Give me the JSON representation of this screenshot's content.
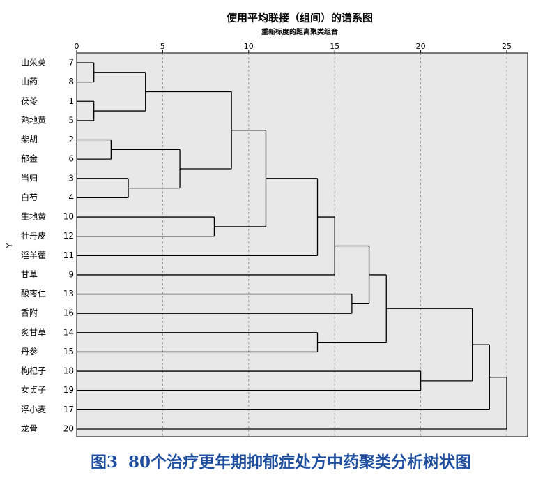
{
  "chart_data": {
    "type": "dendrogram",
    "title": "使用平均联接（组间）的谱系图",
    "subtitle": "重新标度的距离聚类组合",
    "y_label": "Y",
    "xlim": [
      0,
      25
    ],
    "xticks": [
      0,
      5,
      10,
      15,
      20,
      25
    ],
    "grid": true,
    "color": "#000000",
    "background": "#e8e8e8",
    "tree": {
      "height": 25,
      "children": [
        {
          "height": 24,
          "children": [
            {
              "height": 23,
              "children": [
                {
                  "height": 18,
                  "children": [
                    {
                      "height": 17,
                      "children": [
                        {
                          "height": 15,
                          "children": [
                            {
                              "height": 14,
                              "children": [
                                {
                                  "height": 11,
                                  "children": [
                                    {
                                      "height": 9,
                                      "children": [
                                        {
                                          "height": 4,
                                          "children": [
                                            {
                                              "height": 1,
                                              "children": [
                                                {
                                                  "label": "山茱萸",
                                                  "id": 7
                                                },
                                                {
                                                  "label": "山药",
                                                  "id": 8
                                                }
                                              ]
                                            },
                                            {
                                              "height": 1,
                                              "children": [
                                                {
                                                  "label": "茯苓",
                                                  "id": 1
                                                },
                                                {
                                                  "label": "熟地黄",
                                                  "id": 5
                                                }
                                              ]
                                            }
                                          ]
                                        },
                                        {
                                          "height": 6,
                                          "children": [
                                            {
                                              "height": 2,
                                              "children": [
                                                {
                                                  "label": "柴胡",
                                                  "id": 2
                                                },
                                                {
                                                  "label": "郁金",
                                                  "id": 6
                                                }
                                              ]
                                            },
                                            {
                                              "height": 3,
                                              "children": [
                                                {
                                                  "label": "当归",
                                                  "id": 3
                                                },
                                                {
                                                  "label": "白芍",
                                                  "id": 4
                                                }
                                              ]
                                            }
                                          ]
                                        }
                                      ]
                                    },
                                    {
                                      "height": 8,
                                      "children": [
                                        {
                                          "label": "生地黄",
                                          "id": 10
                                        },
                                        {
                                          "label": "牡丹皮",
                                          "id": 12
                                        }
                                      ]
                                    }
                                  ]
                                },
                                {
                                  "label": "淫羊藿",
                                  "id": 11
                                }
                              ]
                            },
                            {
                              "label": "甘草",
                              "id": 9
                            }
                          ]
                        },
                        {
                          "height": 16,
                          "children": [
                            {
                              "label": "酸枣仁",
                              "id": 13
                            },
                            {
                              "label": "香附",
                              "id": 16
                            }
                          ]
                        }
                      ]
                    },
                    {
                      "height": 14,
                      "children": [
                        {
                          "label": "炙甘草",
                          "id": 14
                        },
                        {
                          "label": "丹参",
                          "id": 15
                        }
                      ]
                    }
                  ]
                },
                {
                  "height": 20,
                  "children": [
                    {
                      "label": "枸杞子",
                      "id": 18
                    },
                    {
                      "label": "女贞子",
                      "id": 19
                    }
                  ]
                }
              ]
            },
            {
              "label": "浮小麦",
              "id": 17
            }
          ]
        },
        {
          "label": "龙骨",
          "id": 20
        }
      ]
    }
  },
  "caption": {
    "figure": "图3",
    "text": "80个治疗更年期抑郁症处方中药聚类分析树状图"
  }
}
